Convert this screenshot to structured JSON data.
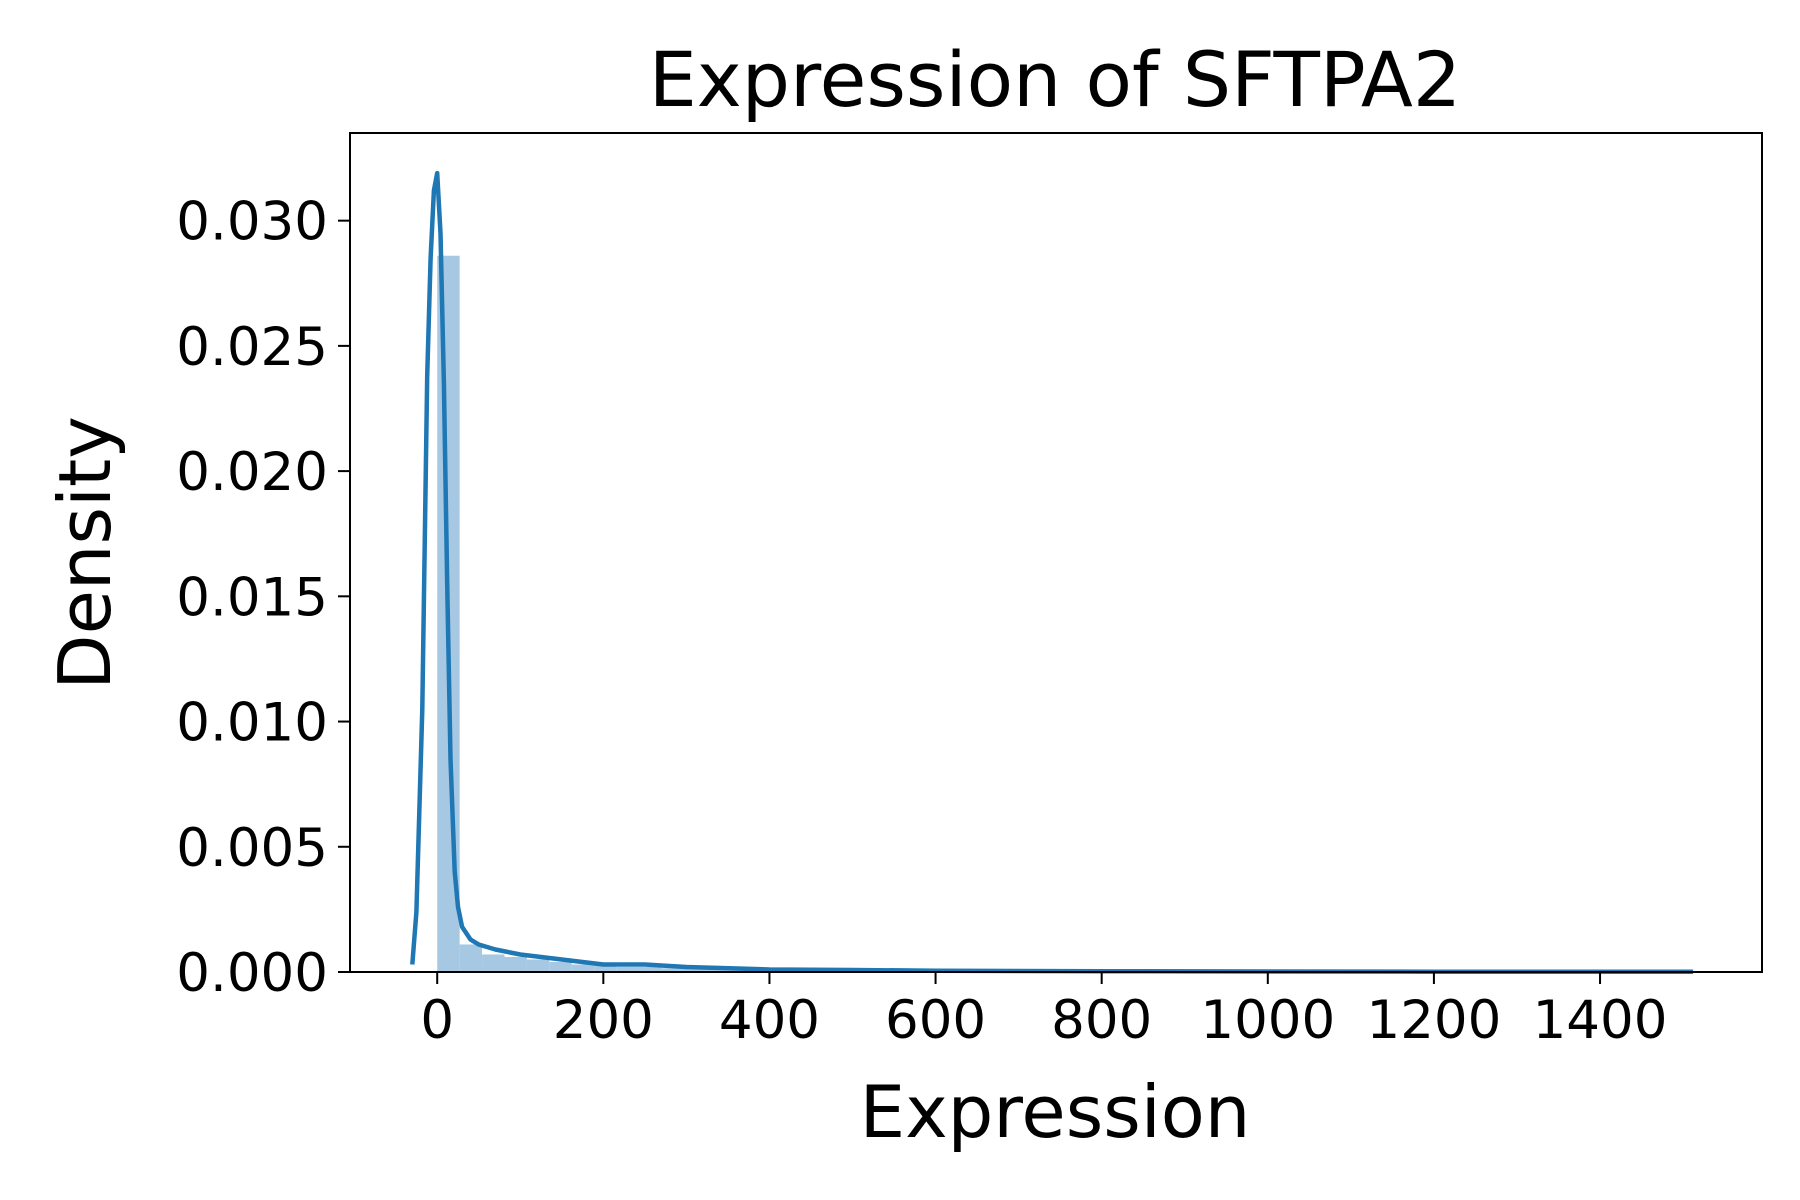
{
  "chart_data": {
    "type": "histogram+kde",
    "title": "Expression of SFTPA2",
    "xlabel": "Expression",
    "ylabel": "Density",
    "xlim": [
      -105,
      1595
    ],
    "ylim": [
      0,
      0.0335
    ],
    "x_ticks": [
      0,
      200,
      400,
      600,
      800,
      1000,
      1200,
      1400
    ],
    "x_tick_labels": [
      "0",
      "200",
      "400",
      "600",
      "800",
      "1000",
      "1200",
      "1400"
    ],
    "y_ticks": [
      0,
      0.005,
      0.01,
      0.015,
      0.02,
      0.025,
      0.03
    ],
    "y_tick_labels": [
      "0.000",
      "0.005",
      "0.010",
      "0.015",
      "0.020",
      "0.025",
      "0.030"
    ],
    "grid": false,
    "colors": {
      "hist": "#a6c8e3",
      "kde": "#1f77b4"
    },
    "histogram": {
      "bins": [
        {
          "x0": 0,
          "x1": 27,
          "density": 0.0286
        },
        {
          "x0": 27,
          "x1": 54,
          "density": 0.0011
        },
        {
          "x0": 54,
          "x1": 81,
          "density": 0.0007
        },
        {
          "x0": 81,
          "x1": 108,
          "density": 0.0006
        },
        {
          "x0": 108,
          "x1": 135,
          "density": 0.0005
        },
        {
          "x0": 135,
          "x1": 162,
          "density": 0.0004
        },
        {
          "x0": 162,
          "x1": 189,
          "density": 0.0003
        },
        {
          "x0": 189,
          "x1": 216,
          "density": 0.0003
        },
        {
          "x0": 216,
          "x1": 270,
          "density": 0.0002
        },
        {
          "x0": 270,
          "x1": 351,
          "density": 0.00015
        },
        {
          "x0": 351,
          "x1": 459,
          "density": 0.0001
        },
        {
          "x0": 459,
          "x1": 648,
          "density": 6e-05
        },
        {
          "x0": 648,
          "x1": 1512,
          "density": 2e-05
        }
      ]
    },
    "kde": {
      "x": [
        -30,
        -25,
        -18,
        -12,
        -8,
        -4,
        0,
        4,
        8,
        12,
        16,
        21,
        25,
        30,
        40,
        50,
        70,
        100,
        150,
        200,
        250,
        300,
        400,
        500,
        600,
        800,
        1000,
        1200,
        1400,
        1512
      ],
      "y": [
        0.0003,
        0.0024,
        0.0105,
        0.0238,
        0.0285,
        0.0312,
        0.0319,
        0.0295,
        0.0235,
        0.0155,
        0.0085,
        0.004,
        0.0026,
        0.0018,
        0.0013,
        0.0011,
        0.0009,
        0.0007,
        0.0005,
        0.0003,
        0.0003,
        0.0002,
        0.0001,
        8e-05,
        5e-05,
        3e-05,
        2e-05,
        1e-05,
        1e-05,
        1e-05
      ]
    }
  }
}
